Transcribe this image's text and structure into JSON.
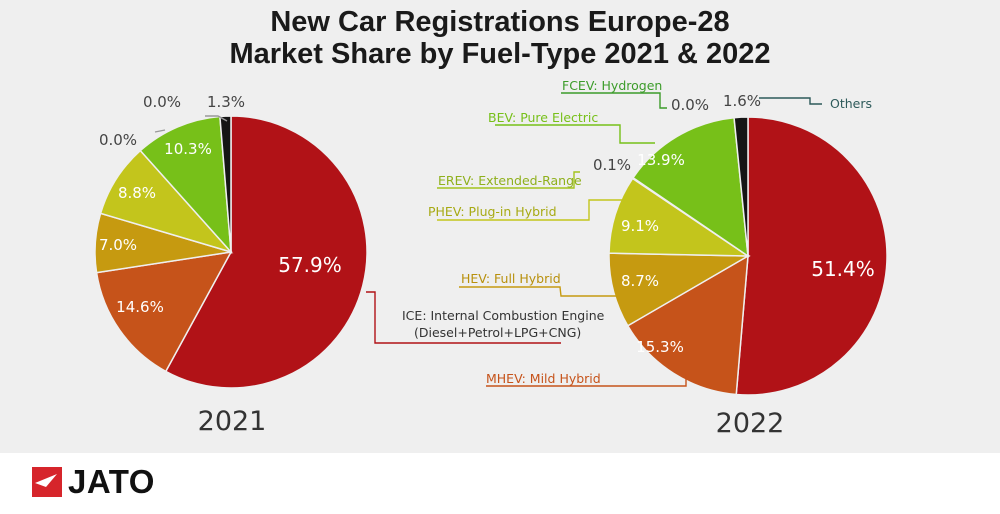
{
  "chart_data": {
    "type": "pie",
    "title": [
      "New Car Registrations Europe-28",
      "Market Share by Fuel-Type 2021 & 2022"
    ],
    "colors": {
      "ICE": "#b11217",
      "MHEV": "#c6531a",
      "HEV": "#c69a10",
      "PHEV": "#c3c51c",
      "EREV": "#a4c41e",
      "BEV": "#77c019",
      "FCEV": "#3c9c2a",
      "Others": "#151515"
    },
    "categories": [
      "ICE: Internal Combustion Engine (Diesel+Petrol+LPG+CNG)",
      "MHEV: Mild Hybrid",
      "HEV: Full Hybrid",
      "PHEV: Plug-in Hybrid",
      "EREV: Extended-Range",
      "BEV: Pure Electric",
      "FCEV: Hydrogen",
      "Others"
    ],
    "pies": [
      {
        "year": "2021",
        "slices": [
          {
            "key": "ICE",
            "value": 57.9,
            "label": "57.9%"
          },
          {
            "key": "MHEV",
            "value": 14.6,
            "label": "14.6%"
          },
          {
            "key": "HEV",
            "value": 7.0,
            "label": "7.0%"
          },
          {
            "key": "PHEV",
            "value": 8.8,
            "label": "8.8%"
          },
          {
            "key": "EREV",
            "value": 0.0,
            "label": "0.0%"
          },
          {
            "key": "BEV",
            "value": 10.3,
            "label": "10.3%"
          },
          {
            "key": "FCEV",
            "value": 0.0,
            "label": "0.0%"
          },
          {
            "key": "Others",
            "value": 1.3,
            "label": "1.3%"
          }
        ]
      },
      {
        "year": "2022",
        "slices": [
          {
            "key": "ICE",
            "value": 51.4,
            "label": "51.4%"
          },
          {
            "key": "MHEV",
            "value": 15.3,
            "label": "15.3%"
          },
          {
            "key": "HEV",
            "value": 8.7,
            "label": "8.7%"
          },
          {
            "key": "PHEV",
            "value": 9.1,
            "label": "9.1%"
          },
          {
            "key": "EREV",
            "value": 0.1,
            "label": "0.1%"
          },
          {
            "key": "BEV",
            "value": 13.9,
            "label": "13.9%"
          },
          {
            "key": "FCEV",
            "value": 0.0,
            "label": "0.0%"
          },
          {
            "key": "Others",
            "value": 1.6,
            "label": "1.6%"
          }
        ]
      }
    ],
    "annotations": {
      "ICE": [
        "ICE: Internal Combustion Engine",
        "(Diesel+Petrol+LPG+CNG)"
      ],
      "MHEV": "MHEV: Mild Hybrid",
      "HEV": "HEV: Full Hybrid",
      "PHEV": "PHEV: Plug-in Hybrid",
      "EREV": "EREV: Extended-Range",
      "BEV": "BEV: Pure Electric",
      "FCEV": "FCEV: Hydrogen",
      "Others": "Others"
    }
  },
  "footer": {
    "brand": "JATO"
  }
}
